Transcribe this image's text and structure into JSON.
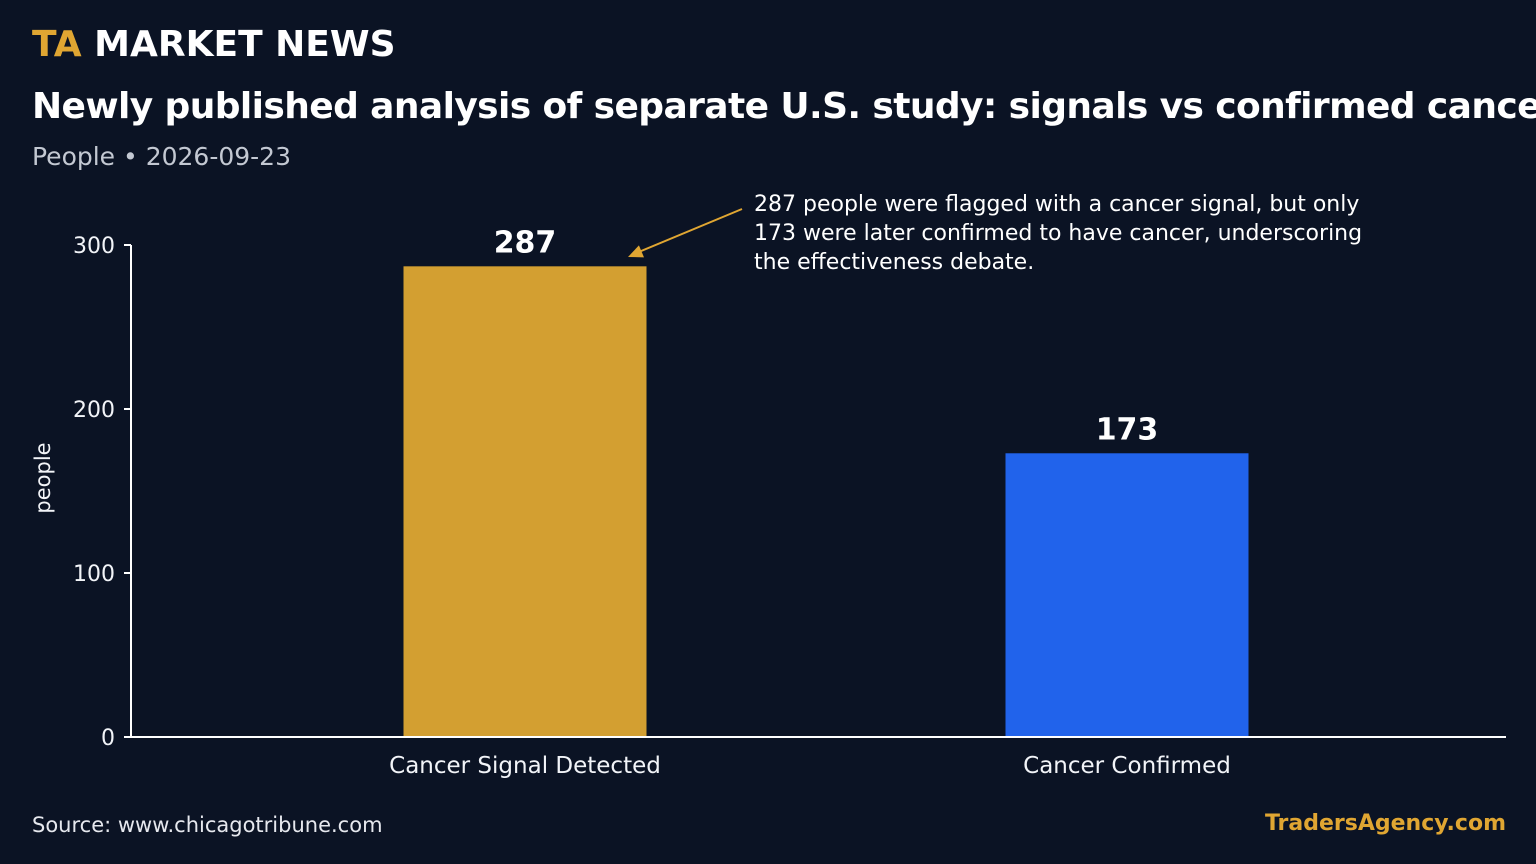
{
  "header": {
    "brand_prefix": "TA",
    "brand_rest": "MARKET NEWS",
    "title": "Newly published analysis of separate U.S. study: signals vs confirmed cancers",
    "subtitle": "People • 2026-09-23"
  },
  "footer": {
    "source": "Source: www.chicagotribune.com",
    "site": "TradersAgency.com"
  },
  "colors": {
    "background": "#0b1324",
    "gold": "#d39f31",
    "blue": "#2163eb",
    "axis": "#ffffff"
  },
  "chart_data": {
    "type": "bar",
    "title": "Newly published analysis of separate U.S. study: signals vs confirmed cancers",
    "xlabel": "",
    "ylabel": "people",
    "ylim": [
      0,
      300
    ],
    "yticks": [
      0,
      100,
      200,
      300
    ],
    "categories": [
      "Cancer Signal Detected",
      "Cancer Confirmed"
    ],
    "values": [
      287,
      173
    ],
    "data_labels": [
      "287",
      "173"
    ],
    "bar_colors": [
      "#d39f31",
      "#2163eb"
    ],
    "grid": false,
    "annotation": {
      "lines": [
        "287 people were flagged with a cancer signal, but only",
        "173 were later confirmed to have cancer, underscoring",
        "the effectiveness debate."
      ],
      "arrow_color": "#e0a632",
      "target_category": "Cancer Signal Detected"
    }
  }
}
